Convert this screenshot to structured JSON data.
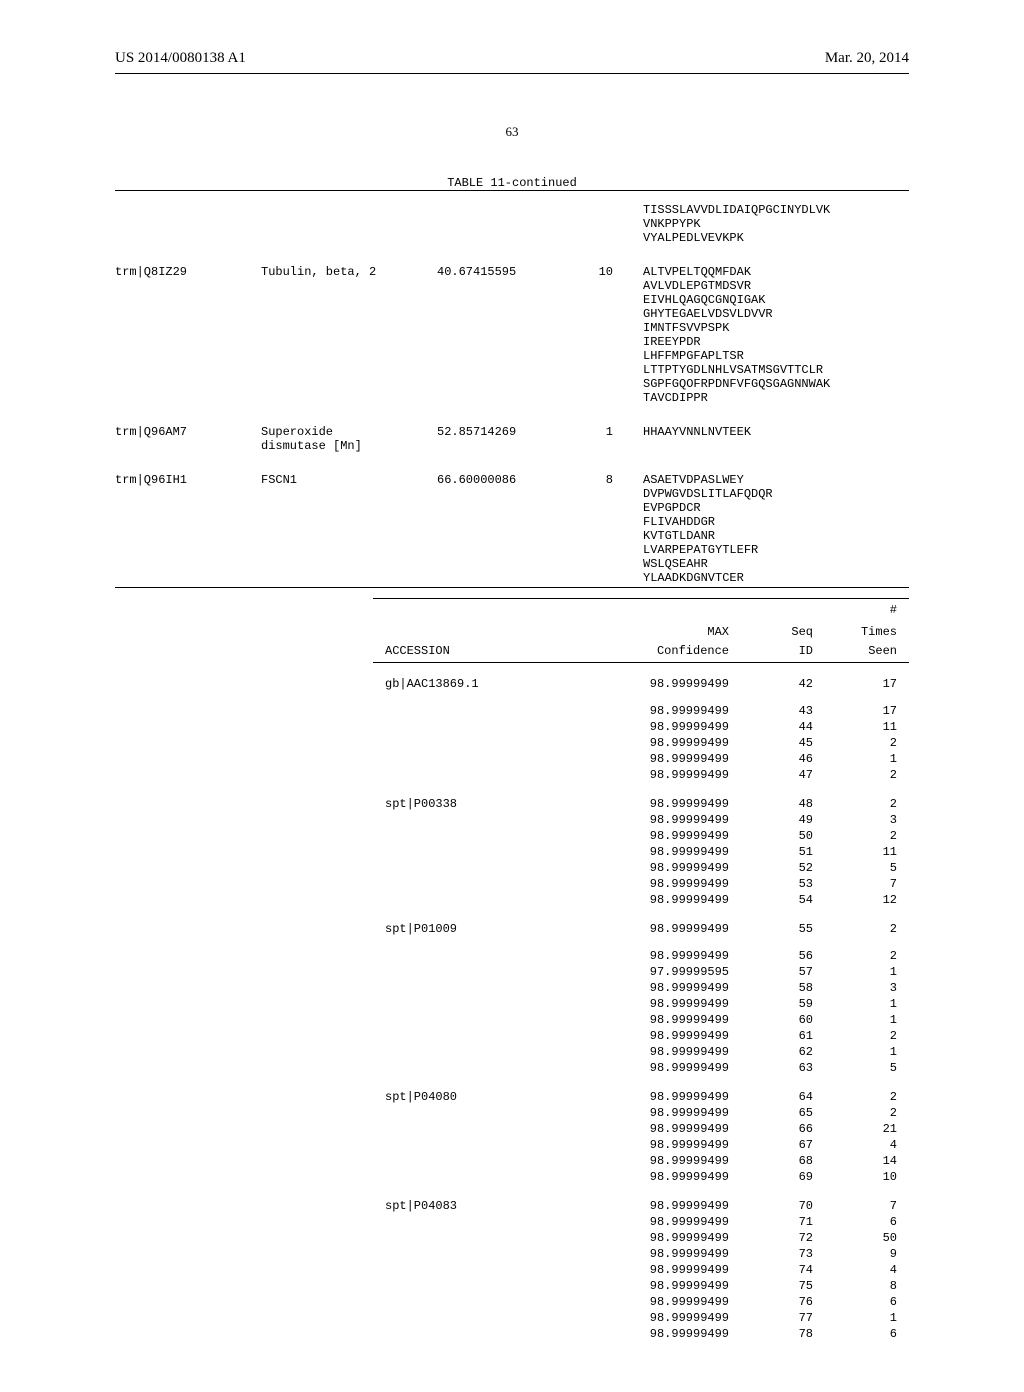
{
  "header": {
    "left": "US 2014/0080138 A1",
    "right": "Mar. 20, 2014"
  },
  "page_number": "63",
  "table1": {
    "title": "TABLE 11-continued",
    "cont_peptides": [
      "TISSSLAVVDLIDAIQPGCINYDLVK",
      "VNKPPYPK",
      "VYALPEDLVEVKPK"
    ],
    "rows": [
      {
        "acc": "trm|Q8IZ29",
        "name": "Tubulin, beta, 2",
        "cov": "40.67415595",
        "n": "10",
        "peps": [
          "ALTVPELTQQMFDAK",
          "AVLVDLEPGTMDSVR",
          "EIVHLQAGQCGNQIGAK",
          "GHYTEGAELVDSVLDVVR",
          "IMNTFSVVPSPK",
          "IREEYPDR",
          "LHFFMPGFAPLTSR",
          "LTTPTYGDLNHLVSATMSGVTTCLR",
          "SGPFGQOFRPDNFVFGQSGAGNNWAK",
          "TAVCDIPPR"
        ]
      },
      {
        "acc": "trm|Q96AM7",
        "name": "Superoxide\ndismutase [Mn]",
        "cov": "52.85714269",
        "n": "1",
        "peps": [
          "HHAAYVNNLNVTEEK"
        ]
      },
      {
        "acc": "trm|Q96IH1",
        "name": "FSCN1",
        "cov": "66.60000086",
        "n": "8",
        "peps": [
          "ASAETVDPASLWEY",
          "DVPWGVDSLITLAFQDQR",
          "EVPGPDCR",
          "FLIVAHDDGR",
          "KVTGTLDANR",
          "LVARPEPATGYTLEFR",
          "WSLQSEAHR",
          "YLAADKDGNVTCER"
        ]
      }
    ]
  },
  "table2": {
    "head": {
      "acc": "ACCESSION",
      "conf1": "MAX",
      "conf2": "Confidence",
      "seq1": "Seq",
      "seq2": "ID",
      "times1": "#",
      "times2": "Times",
      "times3": "Seen"
    },
    "groups": [
      {
        "acc": "gb|AAC13869.1",
        "rows": [
          {
            "conf": "98.99999499",
            "seq": "42",
            "t": "17"
          },
          {
            "conf": "98.99999499",
            "seq": "43",
            "t": "17"
          },
          {
            "conf": "98.99999499",
            "seq": "44",
            "t": "11"
          },
          {
            "conf": "98.99999499",
            "seq": "45",
            "t": "2"
          },
          {
            "conf": "98.99999499",
            "seq": "46",
            "t": "1"
          },
          {
            "conf": "98.99999499",
            "seq": "47",
            "t": "2"
          }
        ],
        "gap_after_first": true
      },
      {
        "acc": "spt|P00338",
        "rows": [
          {
            "conf": "98.99999499",
            "seq": "48",
            "t": "2"
          },
          {
            "conf": "98.99999499",
            "seq": "49",
            "t": "3"
          },
          {
            "conf": "98.99999499",
            "seq": "50",
            "t": "2"
          },
          {
            "conf": "98.99999499",
            "seq": "51",
            "t": "11"
          },
          {
            "conf": "98.99999499",
            "seq": "52",
            "t": "5"
          },
          {
            "conf": "98.99999499",
            "seq": "53",
            "t": "7"
          },
          {
            "conf": "98.99999499",
            "seq": "54",
            "t": "12"
          }
        ]
      },
      {
        "acc": "spt|P01009",
        "rows": [
          {
            "conf": "98.99999499",
            "seq": "55",
            "t": "2"
          },
          {
            "conf": "98.99999499",
            "seq": "56",
            "t": "2"
          },
          {
            "conf": "97.99999595",
            "seq": "57",
            "t": "1"
          },
          {
            "conf": "98.99999499",
            "seq": "58",
            "t": "3"
          },
          {
            "conf": "98.99999499",
            "seq": "59",
            "t": "1"
          },
          {
            "conf": "98.99999499",
            "seq": "60",
            "t": "1"
          },
          {
            "conf": "98.99999499",
            "seq": "61",
            "t": "2"
          },
          {
            "conf": "98.99999499",
            "seq": "62",
            "t": "1"
          },
          {
            "conf": "98.99999499",
            "seq": "63",
            "t": "5"
          }
        ],
        "gap_after_first": true
      },
      {
        "acc": "spt|P04080",
        "rows": [
          {
            "conf": "98.99999499",
            "seq": "64",
            "t": "2"
          },
          {
            "conf": "98.99999499",
            "seq": "65",
            "t": "2"
          },
          {
            "conf": "98.99999499",
            "seq": "66",
            "t": "21"
          },
          {
            "conf": "98.99999499",
            "seq": "67",
            "t": "4"
          },
          {
            "conf": "98.99999499",
            "seq": "68",
            "t": "14"
          },
          {
            "conf": "98.99999499",
            "seq": "69",
            "t": "10"
          }
        ]
      },
      {
        "acc": "spt|P04083",
        "rows": [
          {
            "conf": "98.99999499",
            "seq": "70",
            "t": "7"
          },
          {
            "conf": "98.99999499",
            "seq": "71",
            "t": "6"
          },
          {
            "conf": "98.99999499",
            "seq": "72",
            "t": "50"
          },
          {
            "conf": "98.99999499",
            "seq": "73",
            "t": "9"
          },
          {
            "conf": "98.99999499",
            "seq": "74",
            "t": "4"
          },
          {
            "conf": "98.99999499",
            "seq": "75",
            "t": "8"
          },
          {
            "conf": "98.99999499",
            "seq": "76",
            "t": "6"
          },
          {
            "conf": "98.99999499",
            "seq": "77",
            "t": "1"
          },
          {
            "conf": "98.99999499",
            "seq": "78",
            "t": "6"
          }
        ]
      }
    ]
  }
}
